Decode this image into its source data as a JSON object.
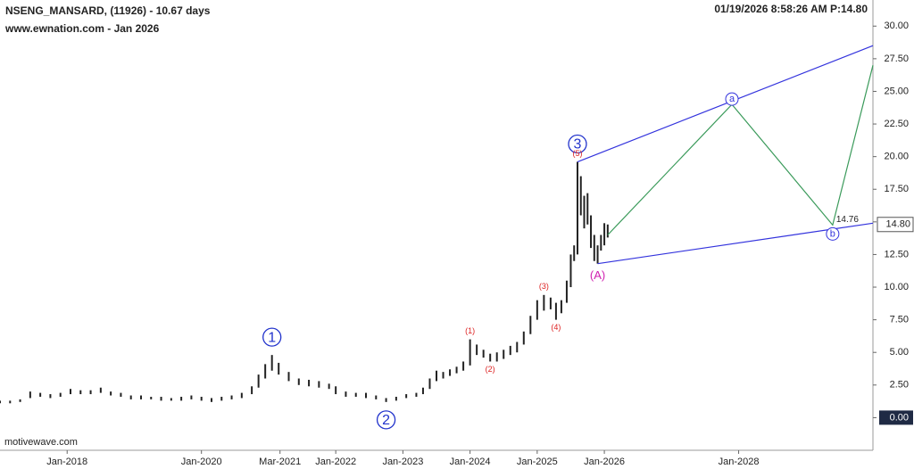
{
  "chart_data": {
    "type": "ohlc",
    "title": "NSENG_MANSARD, (11926) - 10.67 days",
    "subtitle": "www.ewnation.com  - Jan 2026",
    "timestamp": "01/19/2026 8:58:26 AM  P:14.80",
    "watermark": "motivewave.com",
    "xlim": [
      2017.0,
      2030.0
    ],
    "xticks": [
      {
        "value": 2018.0,
        "label": "Jan-2018"
      },
      {
        "value": 2020.0,
        "label": "Jan-2020"
      },
      {
        "value": 2021.17,
        "label": "Mar-2021"
      },
      {
        "value": 2022.0,
        "label": "Jan-2022"
      },
      {
        "value": 2023.0,
        "label": "Jan-2023"
      },
      {
        "value": 2024.0,
        "label": "Jan-2024"
      },
      {
        "value": 2025.0,
        "label": "Jan-2025"
      },
      {
        "value": 2026.0,
        "label": "Jan-2026"
      },
      {
        "value": 2028.0,
        "label": "Jan-2028"
      }
    ],
    "ylim": [
      -2.5,
      32.0
    ],
    "yticks": [
      {
        "value": 0,
        "label": "0.00"
      },
      {
        "value": 2.5,
        "label": "2.50"
      },
      {
        "value": 5,
        "label": "5.00"
      },
      {
        "value": 7.5,
        "label": "7.50"
      },
      {
        "value": 10,
        "label": "10.00"
      },
      {
        "value": 12.5,
        "label": "12.50"
      },
      {
        "value": 15,
        "label": "15.00"
      },
      {
        "value": 17.5,
        "label": "17.50"
      },
      {
        "value": 20,
        "label": "20.00"
      },
      {
        "value": 22.5,
        "label": "22.50"
      },
      {
        "value": 25,
        "label": "25.00"
      },
      {
        "value": 27.5,
        "label": "27.50"
      },
      {
        "value": 30,
        "label": "30.00"
      }
    ],
    "last_price": {
      "value": 14.8,
      "label": "14.80"
    },
    "color": "#222222",
    "x": [
      2017.0,
      2017.15,
      2017.3,
      2017.45,
      2017.6,
      2017.75,
      2017.9,
      2018.05,
      2018.2,
      2018.35,
      2018.5,
      2018.65,
      2018.8,
      2018.95,
      2019.1,
      2019.25,
      2019.4,
      2019.55,
      2019.7,
      2019.85,
      2020.0,
      2020.15,
      2020.3,
      2020.45,
      2020.6,
      2020.75,
      2020.85,
      2020.95,
      2021.05,
      2021.15,
      2021.3,
      2021.45,
      2021.6,
      2021.75,
      2021.9,
      2022.0,
      2022.15,
      2022.3,
      2022.45,
      2022.6,
      2022.75,
      2022.9,
      2023.05,
      2023.2,
      2023.3,
      2023.4,
      2023.5,
      2023.6,
      2023.7,
      2023.8,
      2023.9,
      2024.0,
      2024.1,
      2024.2,
      2024.3,
      2024.4,
      2024.5,
      2024.6,
      2024.7,
      2024.8,
      2024.9,
      2025.0,
      2025.1,
      2025.2,
      2025.28,
      2025.36,
      2025.44,
      2025.5,
      2025.55,
      2025.6,
      2025.65,
      2025.7,
      2025.75,
      2025.8,
      2025.85,
      2025.9,
      2025.95,
      2026.0,
      2026.05
    ],
    "low": [
      1.1,
      1.1,
      1.2,
      1.5,
      1.6,
      1.5,
      1.6,
      1.8,
      1.8,
      1.8,
      1.9,
      1.7,
      1.6,
      1.4,
      1.4,
      1.4,
      1.3,
      1.3,
      1.3,
      1.4,
      1.3,
      1.2,
      1.3,
      1.4,
      1.5,
      1.8,
      2.3,
      3.0,
      3.6,
      3.3,
      2.8,
      2.5,
      2.4,
      2.3,
      2.2,
      1.8,
      1.6,
      1.6,
      1.5,
      1.4,
      1.2,
      1.3,
      1.5,
      1.6,
      1.8,
      2.2,
      2.8,
      3.0,
      3.2,
      3.4,
      3.6,
      4.0,
      4.8,
      4.6,
      4.3,
      4.3,
      4.5,
      4.8,
      5.0,
      5.6,
      6.4,
      7.5,
      8.2,
      8.3,
      7.5,
      8.0,
      8.8,
      10.0,
      12.0,
      12.5,
      15.5,
      14.5,
      14.8,
      13.0,
      12.0,
      11.8,
      12.8,
      13.2,
      13.8
    ],
    "high": [
      1.3,
      1.3,
      1.4,
      2.0,
      1.9,
      1.8,
      1.9,
      2.2,
      2.1,
      2.1,
      2.3,
      2.0,
      1.9,
      1.7,
      1.7,
      1.6,
      1.6,
      1.5,
      1.6,
      1.7,
      1.6,
      1.5,
      1.6,
      1.7,
      1.9,
      2.4,
      3.3,
      4.1,
      4.8,
      4.2,
      3.5,
      3.0,
      2.9,
      2.8,
      2.6,
      2.4,
      2.0,
      1.9,
      1.9,
      1.7,
      1.5,
      1.6,
      1.8,
      1.9,
      2.3,
      3.0,
      3.6,
      3.5,
      3.7,
      3.9,
      4.3,
      6.0,
      5.6,
      5.2,
      4.9,
      5.0,
      5.2,
      5.5,
      5.8,
      6.6,
      7.8,
      9.0,
      9.4,
      9.2,
      8.8,
      9.0,
      10.5,
      12.5,
      13.2,
      19.6,
      18.5,
      17.0,
      17.2,
      15.5,
      14.0,
      13.2,
      14.0,
      14.9,
      14.8
    ],
    "channel": {
      "color": "#3333dd",
      "upper": {
        "x": [
          2025.6,
          2030.0
        ],
        "values": [
          19.6,
          28.5
        ]
      },
      "lower": {
        "x": [
          2025.9,
          2030.0
        ],
        "values": [
          11.8,
          14.9
        ]
      }
    },
    "projection": {
      "color": "#3a9a5a",
      "x": [
        2026.05,
        2027.9,
        2029.4,
        2030.0
      ],
      "values": [
        14.0,
        24.0,
        14.76,
        27.0
      ],
      "labels": [
        null,
        "a",
        "b",
        null
      ]
    },
    "waves": [
      {
        "label": "1",
        "x": 2021.05,
        "price": 4.8,
        "style": "circle",
        "position": "above"
      },
      {
        "label": "2",
        "x": 2022.75,
        "price": 1.2,
        "style": "circle",
        "position": "below"
      },
      {
        "label": "3",
        "x": 2025.6,
        "price": 19.6,
        "style": "circle",
        "position": "above"
      },
      {
        "label": "(1)",
        "x": 2024.0,
        "price": 6.0,
        "style": "minor",
        "position": "above"
      },
      {
        "label": "(2)",
        "x": 2024.3,
        "price": 4.3,
        "style": "minor",
        "position": "below"
      },
      {
        "label": "(3)",
        "x": 2025.1,
        "price": 9.4,
        "style": "minor",
        "position": "above"
      },
      {
        "label": "(4)",
        "x": 2025.28,
        "price": 7.5,
        "style": "minor",
        "position": "below"
      },
      {
        "label": "(5)",
        "x": 2025.6,
        "price": 19.6,
        "style": "minor",
        "position": "above"
      },
      {
        "label": "(A)",
        "x": 2025.9,
        "price": 11.8,
        "style": "major",
        "position": "below"
      }
    ]
  }
}
